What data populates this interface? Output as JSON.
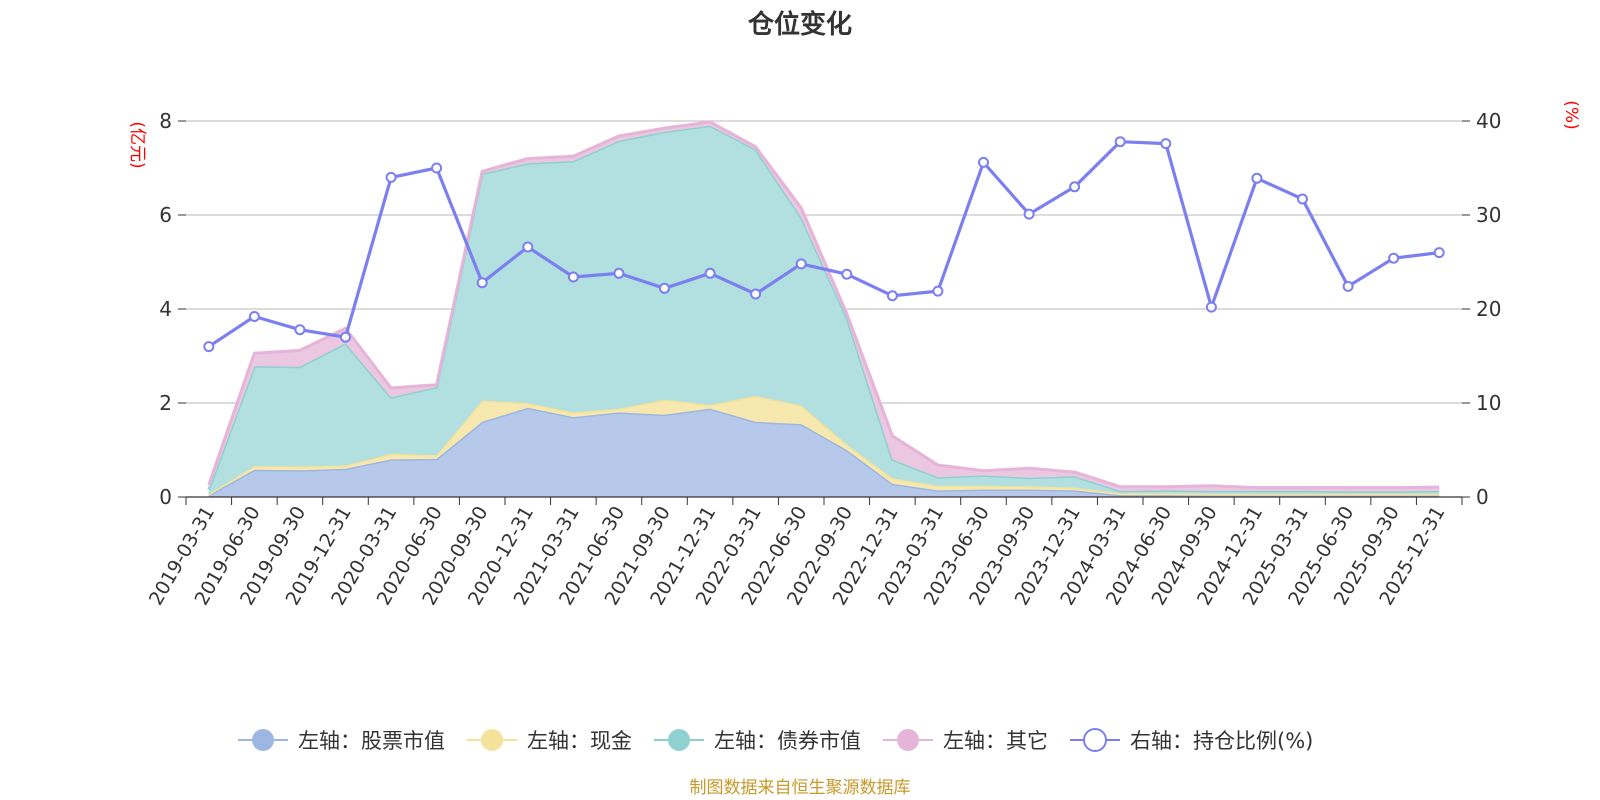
{
  "chart_data": {
    "type": "area",
    "title": "仓位变化",
    "left_axis_unit": "(亿元)",
    "right_axis_unit": "(%)",
    "left_ylim": [
      0,
      8
    ],
    "left_yticks": [
      0,
      2,
      4,
      6,
      8
    ],
    "right_ylim": [
      0,
      40
    ],
    "right_yticks": [
      0,
      10,
      20,
      30,
      40
    ],
    "grid": true,
    "legend_position": "bottom",
    "categories": [
      "2019-03-31",
      "2019-06-30",
      "2019-09-30",
      "2019-12-31",
      "2020-03-31",
      "2020-06-30",
      "2020-09-30",
      "2020-12-31",
      "2021-03-31",
      "2021-06-30",
      "2021-09-30",
      "2021-12-31",
      "2022-03-31",
      "2022-06-30",
      "2022-09-30",
      "2022-12-31",
      "2023-03-31",
      "2023-06-30",
      "2023-09-30",
      "2023-12-31",
      "2024-03-31",
      "2024-06-30",
      "2024-09-30",
      "2024-12-31",
      "2025-03-31",
      "2025-06-30",
      "2025-09-30",
      "2025-12-31"
    ],
    "stacked_series": [
      {
        "name": "左轴：股票市值",
        "color": "#9db6e2",
        "fill": "#b6c9ea",
        "values": [
          0.04,
          0.58,
          0.57,
          0.6,
          0.8,
          0.81,
          1.6,
          1.9,
          1.7,
          1.8,
          1.75,
          1.88,
          1.6,
          1.55,
          1.0,
          0.28,
          0.14,
          0.16,
          0.16,
          0.14,
          0.04,
          0.04,
          0.03,
          0.03,
          0.03,
          0.03,
          0.03,
          0.03
        ]
      },
      {
        "name": "左轴：现金",
        "color": "#f5e29a",
        "fill": "#f6e8ae",
        "values": [
          0.02,
          0.08,
          0.08,
          0.07,
          0.12,
          0.08,
          0.45,
          0.1,
          0.1,
          0.08,
          0.32,
          0.08,
          0.55,
          0.4,
          0.12,
          0.12,
          0.1,
          0.08,
          0.07,
          0.06,
          0.04,
          0.04,
          0.04,
          0.04,
          0.04,
          0.04,
          0.04,
          0.04
        ]
      },
      {
        "name": "左轴：债券市值",
        "color": "#8fd0d0",
        "fill": "#b2e0e0",
        "values": [
          0.1,
          2.12,
          2.12,
          2.6,
          1.2,
          1.45,
          4.83,
          5.1,
          5.35,
          5.7,
          5.7,
          5.94,
          5.25,
          4.0,
          2.7,
          0.4,
          0.18,
          0.22,
          0.18,
          0.24,
          0.05,
          0.06,
          0.06,
          0.06,
          0.06,
          0.05,
          0.05,
          0.06
        ]
      },
      {
        "name": "左轴：其它",
        "color": "#e5b4d8",
        "fill": "#ebc7e1",
        "values": [
          0.1,
          0.28,
          0.35,
          0.32,
          0.2,
          0.05,
          0.05,
          0.1,
          0.1,
          0.1,
          0.08,
          0.08,
          0.05,
          0.2,
          0.08,
          0.5,
          0.26,
          0.1,
          0.2,
          0.09,
          0.09,
          0.08,
          0.11,
          0.07,
          0.07,
          0.08,
          0.08,
          0.08
        ]
      }
    ],
    "line_series": {
      "name": "右轴：持仓比例(%)",
      "color": "#7b7ff0",
      "values": [
        16.0,
        19.2,
        17.8,
        17.0,
        34.0,
        35.0,
        22.8,
        26.6,
        23.4,
        23.8,
        22.2,
        23.8,
        21.6,
        24.8,
        23.7,
        21.4,
        21.9,
        35.6,
        30.1,
        33.0,
        37.8,
        37.6,
        20.2,
        33.9,
        31.7,
        22.4,
        25.4,
        26.0
      ]
    }
  },
  "footer": {
    "source": "制图数据来自恒生聚源数据库"
  }
}
